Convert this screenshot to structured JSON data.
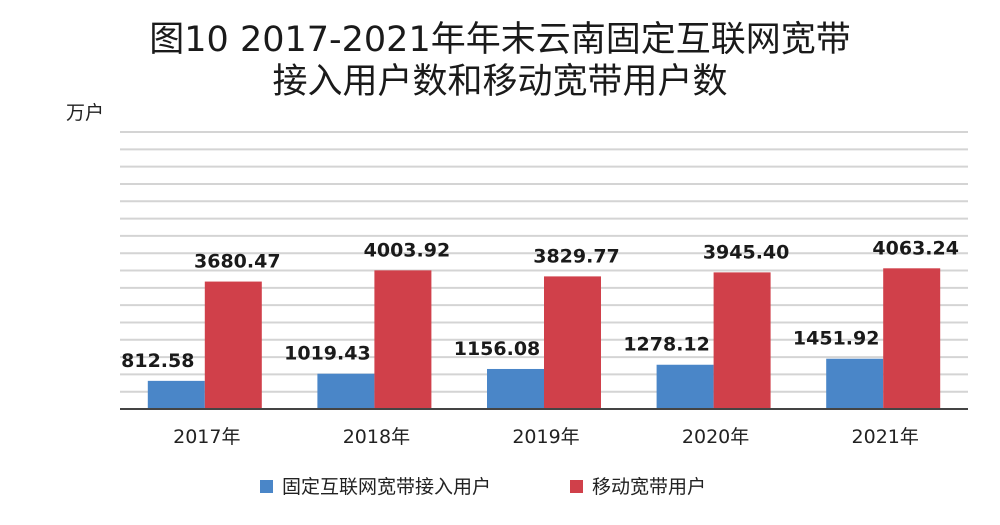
{
  "chart_data": {
    "type": "bar",
    "title": "图10 2017-2021年年末云南固定互联网宽带",
    "subtitle": "接入用户数和移动宽带用户数",
    "ylabel": "万户",
    "xlabel": "",
    "categories": [
      "2017年",
      "2018年",
      "2019年",
      "2020年",
      "2021年"
    ],
    "series": [
      {
        "name": "固定互联网宽带接入用户",
        "color": "#4a86c8",
        "values": [
          812.58,
          1019.43,
          1156.08,
          1278.12,
          1451.92
        ],
        "labels": [
          "812.58",
          "1019.43",
          "1156.08",
          "1278.12",
          "1451.92"
        ]
      },
      {
        "name": "移动宽带用户",
        "color": "#d0404a",
        "values": [
          3680.47,
          4003.92,
          3829.77,
          3945.4,
          4063.24
        ],
        "labels": [
          "3680.47",
          "4003.92",
          "3829.77",
          "3945.40",
          "4063.24"
        ]
      }
    ],
    "ylim": [
      0,
      8000
    ],
    "grid": true,
    "legend": "bottom"
  }
}
